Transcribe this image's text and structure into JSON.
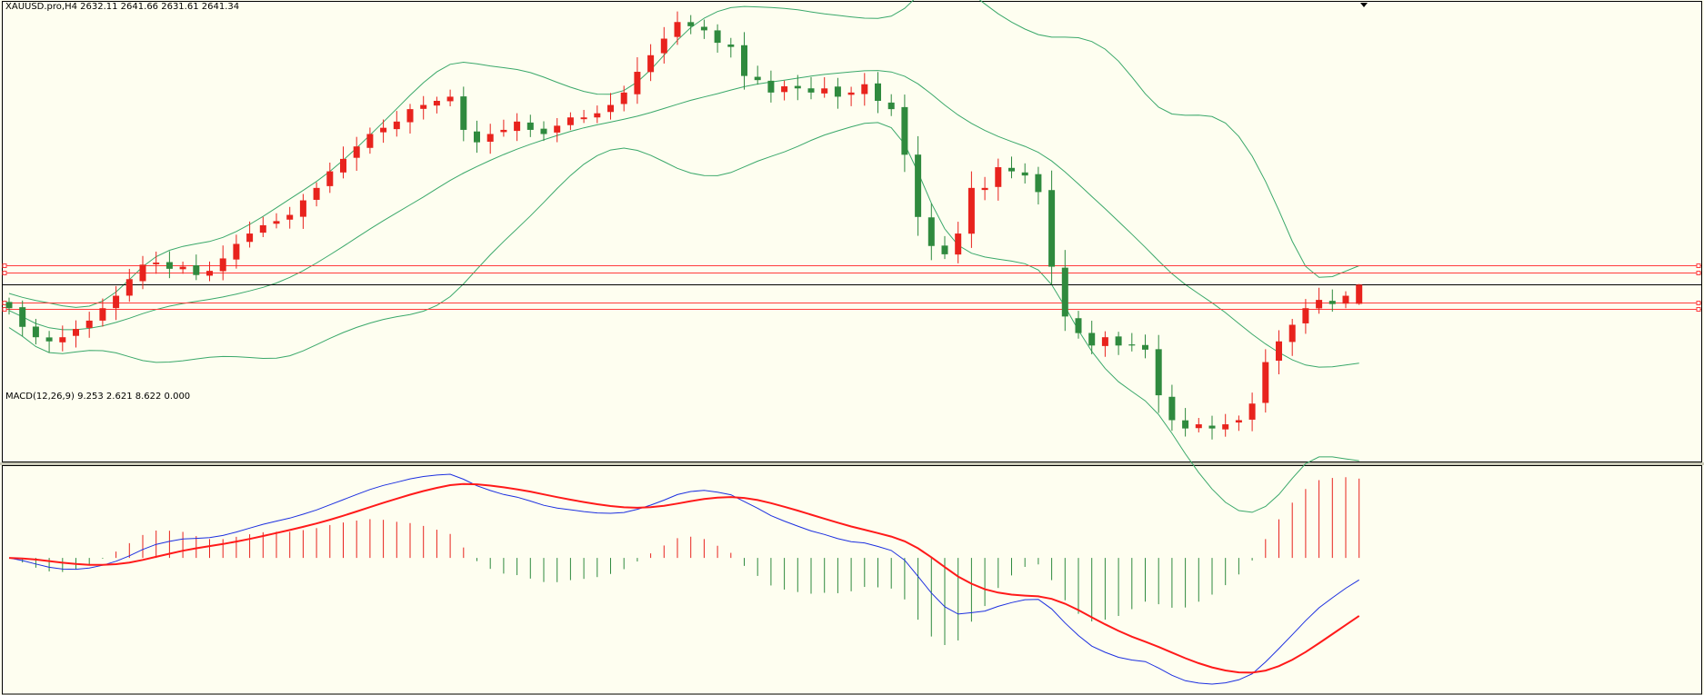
{
  "window": {
    "symbol_header": "XAUUSD.pro,H4  2632.11 2641.66 2631.61 2641.34",
    "indicator_header": "MACD(12,26,9) 9.253 2.621 8.622 0.000"
  },
  "colors": {
    "background": "#fefef0",
    "bull_candle": "#e8231d",
    "bear_candle": "#2f8a3e",
    "bollinger": "#3aa86a",
    "level_line": "#ff3b3b",
    "current_price_line": "#000000",
    "macd_line": "#1c2fe0",
    "signal_line": "#ff1a1a",
    "histogram_pos": "#e8231d",
    "histogram_neg": "#2f8a3e"
  },
  "chart_data": [
    {
      "type": "candlestick",
      "title": "XAUUSD.pro,H4",
      "ohlc": {
        "open": 2632.11,
        "high": 2641.66,
        "low": 2631.61,
        "close": 2641.34
      },
      "close_series": [
        2630,
        2621,
        2616,
        2614,
        2616,
        2620,
        2624,
        2630,
        2636,
        2644,
        2651,
        2652,
        2649,
        2650,
        2646,
        2648,
        2654,
        2661,
        2666,
        2670,
        2672,
        2675,
        2682,
        2688,
        2696,
        2702,
        2708,
        2714,
        2717,
        2720,
        2726,
        2728,
        2730,
        2732,
        2716,
        2710,
        2714,
        2716,
        2720,
        2716,
        2714,
        2718,
        2722,
        2722,
        2724,
        2728,
        2734,
        2744,
        2752,
        2760,
        2768,
        2766,
        2764,
        2758,
        2756,
        2742,
        2740,
        2734,
        2737,
        2736,
        2734,
        2736,
        2732,
        2734,
        2738,
        2730,
        2726,
        2704,
        2674,
        2660,
        2656,
        2666,
        2688,
        2688,
        2698,
        2696,
        2694,
        2686,
        2650,
        2626,
        2618,
        2612,
        2616,
        2612,
        2612,
        2610,
        2588,
        2576,
        2572,
        2574,
        2572,
        2574,
        2576,
        2584,
        2604,
        2614,
        2622,
        2630,
        2634,
        2632,
        2636,
        2638
      ],
      "bollinger": {
        "period": 20,
        "deviations": 2
      },
      "horizontal_levels": [
        2650.5,
        2647.2,
        2632.6,
        2629.5
      ],
      "current_price": 2641.34,
      "price_range": [
        2560,
        2776
      ],
      "grid": false
    },
    {
      "type": "line",
      "title": "MACD(12,26,9)",
      "params": [
        12,
        26,
        9
      ],
      "values": {
        "main": 9.253,
        "signal": 2.621,
        "histogram": 8.622,
        "extra": 0.0
      },
      "series": [
        {
          "name": "MACD"
        },
        {
          "name": "Signal"
        }
      ],
      "grid": false
    }
  ]
}
